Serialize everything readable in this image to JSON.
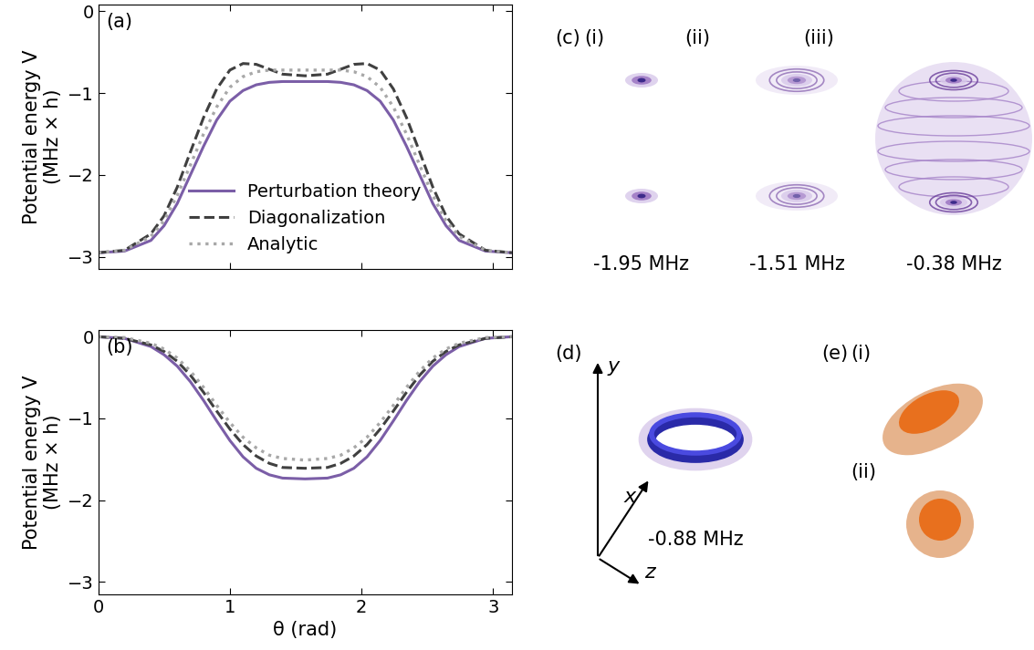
{
  "chart_data": [
    {
      "type": "line",
      "annotations": [
        "(a)"
      ],
      "ylabel": "Potential energy V\n(MHz × h)",
      "x": [
        0,
        0.2,
        0.4,
        0.5,
        0.6,
        0.7,
        0.8,
        0.9,
        1.0,
        1.1,
        1.2,
        1.3,
        1.4,
        1.5708,
        1.7416,
        1.8416,
        1.9416,
        2.0416,
        2.1416,
        2.2416,
        2.3416,
        2.4416,
        2.5416,
        2.6416,
        2.7416,
        2.9416,
        3.1416
      ],
      "xlim": [
        0,
        3.1416
      ],
      "xticks": [
        0,
        1,
        2,
        3
      ],
      "ylim": [
        -3.15,
        0.08
      ],
      "yticks": [
        {
          "value": -3,
          "label": "−3"
        },
        {
          "value": -2,
          "label": "−2"
        },
        {
          "value": -1,
          "label": "−1"
        },
        0
      ],
      "tick_labels": "y",
      "legend": "lower center",
      "series": [
        {
          "name": "Perturbation theory",
          "color": "#7b5ea7",
          "line_style": "solid",
          "values": [
            -2.95,
            -2.93,
            -2.8,
            -2.62,
            -2.35,
            -2.0,
            -1.65,
            -1.33,
            -1.1,
            -0.97,
            -0.9,
            -0.87,
            -0.86,
            -0.86,
            -0.86,
            -0.87,
            -0.9,
            -0.97,
            -1.1,
            -1.33,
            -1.65,
            -2.0,
            -2.35,
            -2.62,
            -2.8,
            -2.93,
            -2.95
          ]
        },
        {
          "name": "Diagonalization",
          "color": "#404040",
          "line_style": "dashed",
          "values": [
            -2.95,
            -2.92,
            -2.72,
            -2.5,
            -2.15,
            -1.72,
            -1.3,
            -0.95,
            -0.72,
            -0.64,
            -0.65,
            -0.71,
            -0.77,
            -0.79,
            -0.77,
            -0.71,
            -0.65,
            -0.64,
            -0.72,
            -0.95,
            -1.3,
            -1.72,
            -2.15,
            -2.5,
            -2.72,
            -2.92,
            -2.95
          ]
        },
        {
          "name": "Analytic",
          "color": "#a8a8a8",
          "line_style": "dotted",
          "values": [
            -2.95,
            -2.92,
            -2.75,
            -2.56,
            -2.25,
            -1.88,
            -1.5,
            -1.17,
            -0.93,
            -0.8,
            -0.74,
            -0.72,
            -0.72,
            -0.72,
            -0.72,
            -0.72,
            -0.74,
            -0.8,
            -0.93,
            -1.17,
            -1.5,
            -1.88,
            -2.25,
            -2.56,
            -2.75,
            -2.92,
            -2.95
          ]
        }
      ]
    },
    {
      "type": "line",
      "annotations": [
        "(b)"
      ],
      "ylabel": "Potential energy V\n(MHz × h)",
      "xlabel": "θ (rad)",
      "x": [
        0,
        0.2,
        0.4,
        0.5,
        0.6,
        0.7,
        0.8,
        0.9,
        1.0,
        1.1,
        1.2,
        1.3,
        1.4,
        1.5708,
        1.7416,
        1.8416,
        1.9416,
        2.0416,
        2.1416,
        2.2416,
        2.3416,
        2.4416,
        2.5416,
        2.6416,
        2.7416,
        2.9416,
        3.1416
      ],
      "xlim": [
        0,
        3.1416
      ],
      "xticks": [
        0,
        1,
        2,
        3
      ],
      "ylim": [
        -3.15,
        0.08
      ],
      "yticks": [
        {
          "value": -3,
          "label": "−3"
        },
        {
          "value": -2,
          "label": "−2"
        },
        {
          "value": -1,
          "label": "−1"
        },
        0
      ],
      "series": [
        {
          "color": "#7b5ea7",
          "line_style": "solid",
          "values": [
            0,
            -0.02,
            -0.12,
            -0.22,
            -0.36,
            -0.55,
            -0.78,
            -1.03,
            -1.27,
            -1.47,
            -1.61,
            -1.69,
            -1.73,
            -1.74,
            -1.73,
            -1.69,
            -1.61,
            -1.47,
            -1.27,
            -1.03,
            -0.78,
            -0.55,
            -0.36,
            -0.22,
            -0.12,
            -0.02,
            0
          ]
        },
        {
          "color": "#404040",
          "line_style": "dashed",
          "values": [
            0,
            -0.02,
            -0.1,
            -0.18,
            -0.3,
            -0.47,
            -0.68,
            -0.91,
            -1.13,
            -1.32,
            -1.46,
            -1.55,
            -1.6,
            -1.61,
            -1.6,
            -1.55,
            -1.46,
            -1.32,
            -1.13,
            -0.91,
            -0.68,
            -0.47,
            -0.3,
            -0.18,
            -0.1,
            -0.02,
            0
          ]
        },
        {
          "color": "#a8a8a8",
          "line_style": "dotted",
          "values": [
            0,
            -0.01,
            -0.08,
            -0.15,
            -0.26,
            -0.42,
            -0.62,
            -0.84,
            -1.05,
            -1.23,
            -1.36,
            -1.45,
            -1.49,
            -1.51,
            -1.49,
            -1.45,
            -1.36,
            -1.23,
            -1.05,
            -0.84,
            -0.62,
            -0.42,
            -0.26,
            -0.15,
            -0.08,
            -0.01,
            0
          ]
        }
      ]
    }
  ],
  "diagrams": {
    "c": {
      "label": "(c)",
      "parts": [
        {
          "label": "(i)",
          "energy": "-1.95 MHz"
        },
        {
          "label": "(ii)",
          "energy": "-1.51 MHz"
        },
        {
          "label": "(iii)",
          "energy": "-0.38 MHz"
        }
      ]
    },
    "d": {
      "label": "(d)",
      "axes": [
        "y",
        "x",
        "z"
      ],
      "energy": "-0.88 MHz"
    },
    "e": {
      "label": "(e)",
      "parts": [
        {
          "label": "(i)"
        },
        {
          "label": "(ii)"
        }
      ]
    }
  }
}
